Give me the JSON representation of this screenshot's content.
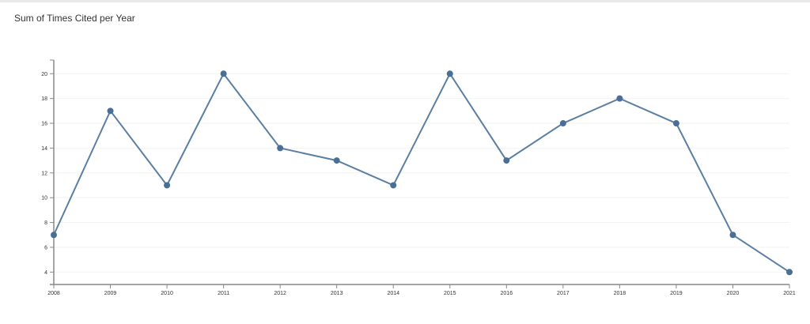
{
  "chart_data": {
    "type": "line",
    "title": "Sum of Times Cited per Year",
    "xlabel": "",
    "ylabel": "",
    "x": [
      2008,
      2009,
      2010,
      2011,
      2012,
      2013,
      2014,
      2015,
      2016,
      2017,
      2018,
      2019,
      2020,
      2021
    ],
    "values": [
      7,
      17,
      11,
      20,
      14,
      13,
      11,
      20,
      13,
      16,
      18,
      16,
      7,
      4
    ],
    "yticks": [
      4,
      6,
      8,
      10,
      12,
      14,
      16,
      18,
      20
    ],
    "ylim": [
      3,
      21.1
    ],
    "xlim": [
      2008,
      2021
    ],
    "grid": true,
    "color": "#5b7fa3",
    "marker_color": "#4a6f96"
  }
}
